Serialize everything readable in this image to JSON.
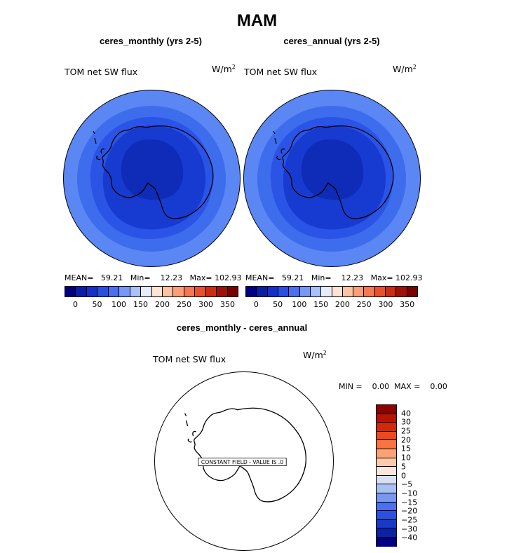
{
  "title": "MAM",
  "panels": [
    {
      "subtitle": "ceres_monthly (yrs 2-5)",
      "variable": "TOM net SW flux",
      "units_base": "W/m",
      "units_exp": "2",
      "stats": "MEAN=   59.21   Min=    12.23   Max= 102.93"
    },
    {
      "subtitle": "ceres_annual (yrs 2-5)",
      "variable": "TOM net SW flux",
      "units_base": "W/m",
      "units_exp": "2",
      "stats": "MEAN=   59.21   Min=    12.23   Max= 102.93"
    }
  ],
  "colorbar": {
    "colors": [
      "#000080",
      "#0a1ea8",
      "#1432c8",
      "#2a50e0",
      "#4a70f0",
      "#7898f4",
      "#aac0f8",
      "#e6ecfa",
      "#fde4d4",
      "#fcc4a4",
      "#f9a07a",
      "#f47852",
      "#e8502e",
      "#cc2c14",
      "#a01008",
      "#780000"
    ],
    "ticks": [
      "0",
      "50",
      "100",
      "150",
      "200",
      "250",
      "300",
      "350"
    ]
  },
  "diff": {
    "subtitle": "ceres_monthly - ceres_annual",
    "variable": "TOM net SW flux",
    "units_base": "W/m",
    "units_exp": "2",
    "stats": "MIN =    0.00  MAX =    0.00",
    "constant_label": "CONSTANT FIELD - VALUE IS .0",
    "colorbar_colors": [
      "#8c0000",
      "#b41400",
      "#d42808",
      "#ec4a1e",
      "#f87442",
      "#fba276",
      "#fdcaaa",
      "#fbe6da",
      "#d8e0f4",
      "#a8c0f2",
      "#7898f0",
      "#4a70ec",
      "#2a50e2",
      "#1838c8",
      "#0a22a6",
      "#000080"
    ],
    "colorbar_ticks": [
      "40",
      "30",
      "25",
      "20",
      "15",
      "10",
      "5",
      "0",
      "−5",
      "−10",
      "−15",
      "−20",
      "−25",
      "−30",
      "−40"
    ]
  },
  "map_colors": {
    "outer": "#5b87f4",
    "ring2": "#3d6ced",
    "ring3": "#2a54e6",
    "inner": "#173bd0",
    "core": "#0f2cb8",
    "boundary": "#000000"
  }
}
